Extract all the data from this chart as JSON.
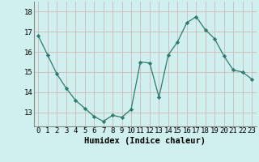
{
  "x": [
    0,
    1,
    2,
    3,
    4,
    5,
    6,
    7,
    8,
    9,
    10,
    11,
    12,
    13,
    14,
    15,
    16,
    17,
    18,
    19,
    20,
    21,
    22,
    23
  ],
  "y": [
    16.8,
    15.85,
    14.9,
    14.2,
    13.6,
    13.2,
    12.8,
    12.55,
    12.85,
    12.75,
    13.15,
    15.5,
    15.45,
    13.75,
    15.85,
    16.5,
    17.45,
    17.75,
    17.1,
    16.65,
    15.8,
    15.1,
    15.0,
    14.65
  ],
  "line_color": "#2d7a6e",
  "marker": "D",
  "marker_size": 2.2,
  "bg_color": "#cff0ee",
  "grid_color": "#d0b8b8",
  "xlabel": "Humidex (Indice chaleur)",
  "ylabel_ticks": [
    13,
    14,
    15,
    16,
    17,
    18
  ],
  "xlim": [
    -0.5,
    23.5
  ],
  "ylim": [
    12.3,
    18.5
  ],
  "xlabel_fontsize": 7.5,
  "tick_fontsize": 6.5,
  "lw": 0.9
}
